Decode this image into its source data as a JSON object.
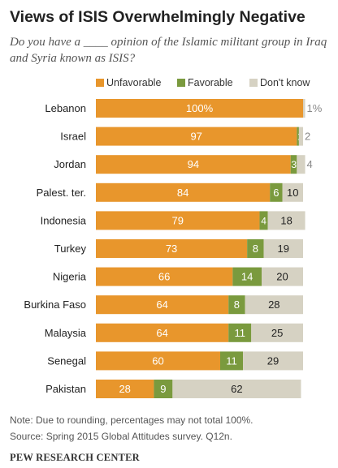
{
  "title": "Views of ISIS Overwhelmingly Negative",
  "subtitle": "Do you have a ____ opinion of the Islamic militant group in Iraq and Syria known as ISIS?",
  "note": "Note: Due to rounding, percentages may not total 100%.",
  "source": "Source: Spring 2015 Global Attitudes survey. Q12n.",
  "org": "PEW RESEARCH CENTER",
  "colors": {
    "unfavorable": "#e8962c",
    "favorable": "#7a9a3e",
    "dont_know": "#d6d2c3",
    "bar_text": "#ffffff",
    "outside_text": "#888888",
    "label_text": "#222222"
  },
  "chart_data": {
    "type": "bar",
    "stacked": true,
    "orientation": "horizontal",
    "legend_position": "top",
    "categories": [
      "Lebanon",
      "Israel",
      "Jordan",
      "Palest. ter.",
      "Indonesia",
      "Turkey",
      "Nigeria",
      "Burkina Faso",
      "Malaysia",
      "Senegal",
      "Pakistan"
    ],
    "series": [
      {
        "name": "Unfavorable",
        "values": [
          100,
          97,
          94,
          84,
          79,
          73,
          66,
          64,
          64,
          60,
          28
        ],
        "labels": [
          "100%",
          "97",
          "94",
          "84",
          "79",
          "73",
          "66",
          "64",
          "64",
          "60",
          "28"
        ]
      },
      {
        "name": "Favorable",
        "values": [
          0,
          1,
          3,
          6,
          4,
          8,
          14,
          8,
          11,
          11,
          9
        ],
        "labels": [
          "",
          "1",
          "3",
          "6",
          "4",
          "8",
          "14",
          "8",
          "11",
          "11",
          "9"
        ]
      },
      {
        "name": "Don't know",
        "values": [
          1,
          2,
          4,
          10,
          18,
          19,
          20,
          28,
          25,
          29,
          62
        ],
        "labels": [
          "1%",
          "2",
          "4",
          "10",
          "18",
          "19",
          "20",
          "28",
          "25",
          "29",
          "62"
        ]
      }
    ]
  }
}
